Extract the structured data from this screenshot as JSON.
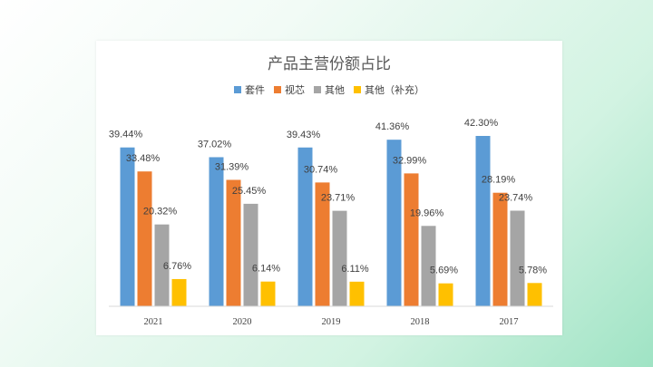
{
  "chart_data": {
    "type": "bar",
    "title": "产品主营份额占比",
    "categories": [
      "2021",
      "2020",
      "2019",
      "2018",
      "2017"
    ],
    "series": [
      {
        "name": "套件",
        "color": "#5b9bd5",
        "values": [
          39.44,
          37.02,
          39.43,
          41.36,
          42.3
        ],
        "labels": [
          "39.44%",
          "37.02%",
          "39.43%",
          "41.36%",
          "42.30%"
        ]
      },
      {
        "name": "视芯",
        "color": "#ed7d31",
        "values": [
          33.48,
          31.39,
          30.74,
          32.99,
          28.19
        ],
        "labels": [
          "33.48%",
          "31.39%",
          "30.74%",
          "32.99%",
          "28.19%"
        ]
      },
      {
        "name": "其他",
        "color": "#a5a5a5",
        "values": [
          20.32,
          25.45,
          23.71,
          19.96,
          23.74
        ],
        "labels": [
          "20.32%",
          "25.45%",
          "23.71%",
          "19.96%",
          "23.74%"
        ]
      },
      {
        "name": "其他（补充）",
        "color": "#ffc000",
        "values": [
          6.76,
          6.14,
          6.11,
          5.69,
          5.78
        ],
        "labels": [
          "6.76%",
          "6.14%",
          "6.11%",
          "5.69%",
          "5.78%"
        ]
      }
    ],
    "ylim": [
      0,
      45
    ],
    "grid": false,
    "legend_position": "top"
  }
}
